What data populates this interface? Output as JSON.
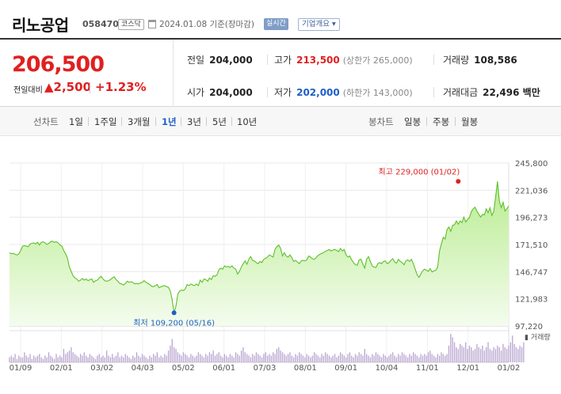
{
  "header": {
    "company_name": "리노공업",
    "code": "058470",
    "market_badge": "코스닥",
    "date_text": "2024.01.08  기준(장마감)",
    "live_badge": "실시간",
    "info_button": "기업개요 ▾"
  },
  "price": {
    "current": "206,500",
    "prev_label": "전일대비",
    "change": "▲2,500",
    "change_pct": "+1.23%"
  },
  "stats": {
    "prev_close_label": "전일",
    "prev_close": "204,000",
    "high_label": "고가",
    "high": "213,500",
    "upper_limit": "(상한가 265,000)",
    "volume_label": "거래량",
    "volume": "108,586",
    "open_label": "시가",
    "open": "204,000",
    "low_label": "저가",
    "low": "202,000",
    "lower_limit": "(하한가 143,000)",
    "amount_label": "거래대금",
    "amount": "22,496 백만"
  },
  "toolbar": {
    "line_label": "선차트",
    "line_periods": [
      "1일",
      "1주일",
      "3개월",
      "1년",
      "3년",
      "5년",
      "10년"
    ],
    "active_line_period": "1년",
    "candle_label": "봉차트",
    "candle_periods": [
      "일봉",
      "주봉",
      "월봉"
    ]
  },
  "chart_data": {
    "type": "area",
    "y_ticks": [
      "245,800",
      "221,036",
      "196,273",
      "171,510",
      "146,747",
      "121,983",
      "97,220"
    ],
    "ylim": [
      97220,
      245800
    ],
    "x_ticks": [
      "01/09",
      "02/01",
      "03/02",
      "04/03",
      "05/02",
      "06/01",
      "07/03",
      "08/01",
      "09/01",
      "10/04",
      "11/01",
      "12/01",
      "01/02"
    ],
    "volume_label": "거래량",
    "max_annotation": "최고 229,000 (01/02)",
    "min_annotation": "최저 109,200 (05/16)",
    "max_value": 229000,
    "min_value": 109200,
    "max_index": 240,
    "min_index": 88,
    "series": [
      {
        "values": [
          164000,
          163000,
          163500,
          162500,
          162000,
          163000,
          166000,
          170000,
          170500,
          170000,
          169500,
          172000,
          172500,
          173000,
          172000,
          173500,
          171000,
          173500,
          174000,
          173000,
          171500,
          172500,
          174000,
          174500,
          173500,
          174000,
          173000,
          171000,
          170000,
          166000,
          163000,
          159000,
          151000,
          147000,
          143000,
          141000,
          140000,
          138000,
          139000,
          140500,
          139000,
          140000,
          138500,
          139500,
          140000,
          137000,
          138500,
          139000,
          141000,
          142500,
          140000,
          138500,
          138000,
          138500,
          139500,
          141000,
          142000,
          139500,
          138000,
          136000,
          135500,
          134500,
          136000,
          138000,
          137000,
          137500,
          137000,
          135500,
          136000,
          135500,
          136500,
          137000,
          138500,
          137000,
          136000,
          135000,
          133500,
          133000,
          134000,
          135000,
          132000,
          133000,
          133500,
          134000,
          133000,
          132500,
          129000,
          121000,
          109200,
          115000,
          126000,
          129000,
          130000,
          129500,
          131000,
          135000,
          134000,
          135500,
          134500,
          134000,
          135500,
          134000,
          139000,
          137000,
          140000,
          139500,
          138000,
          141000,
          139500,
          143000,
          142500,
          144000,
          148500,
          150000,
          149000,
          152000,
          151000,
          151500,
          150500,
          152000,
          150000,
          149000,
          144500,
          147000,
          151000,
          154000,
          156500,
          153500,
          158000,
          160500,
          157000,
          156500,
          155000,
          154000,
          156000,
          155000,
          158000,
          159000,
          160000,
          162000,
          161000,
          160000,
          167000,
          169500,
          171000,
          168000,
          161000,
          164000,
          161000,
          160000,
          162000,
          159500,
          156000,
          157000,
          155500,
          154000,
          156500,
          157000,
          156500,
          157500,
          161000,
          160000,
          158500,
          158000,
          159500,
          161500,
          162500,
          163500,
          164000,
          165500,
          166000,
          167000,
          165500,
          166500,
          167000,
          166000,
          165000,
          168000,
          165500,
          167000,
          162000,
          160000,
          161000,
          157500,
          155000,
          153000,
          152500,
          157500,
          158000,
          153500,
          150000,
          158000,
          160500,
          156000,
          152000,
          151000,
          150500,
          154000,
          155000,
          154000,
          156000,
          156500,
          154000,
          155000,
          157000,
          158500,
          155500,
          154500,
          158000,
          156000,
          155000,
          153000,
          156500,
          157500,
          156000,
          158000,
          154000,
          149000,
          144000,
          141500,
          144500,
          147500,
          149000,
          148000,
          147000,
          149500,
          146500,
          147500,
          148000,
          151000,
          165500,
          172000,
          178000,
          176500,
          185000,
          187500,
          183500,
          189000,
          189500,
          193000,
          190000,
          193000,
          191500,
          196500,
          192000,
          194500,
          196000,
          201500,
          204000,
          205500,
          202000,
          199000,
          196500,
          199000,
          198500,
          204000,
          200500,
          205000,
          198000,
          201500,
          215000,
          229000,
          211000,
          205000,
          210000,
          202000,
          204000,
          206500
        ]
      },
      {
        "name": "거래량",
        "values": [
          3,
          4,
          3,
          5,
          2,
          4,
          3,
          3,
          6,
          4,
          3,
          5,
          2,
          4,
          3,
          4,
          5,
          3,
          2,
          4,
          3,
          6,
          4,
          3,
          2,
          5,
          3,
          4,
          3,
          8,
          5,
          6,
          7,
          9,
          6,
          5,
          4,
          3,
          5,
          4,
          6,
          4,
          3,
          5,
          4,
          3,
          2,
          4,
          5,
          3,
          4,
          3,
          7,
          4,
          3,
          5,
          3,
          4,
          6,
          3,
          4,
          3,
          5,
          4,
          3,
          2,
          4,
          3,
          6,
          4,
          3,
          5,
          4,
          3,
          2,
          4,
          3,
          5,
          4,
          6,
          3,
          4,
          3,
          5,
          4,
          7,
          10,
          14,
          9,
          8,
          6,
          5,
          4,
          6,
          5,
          4,
          3,
          5,
          4,
          3,
          4,
          6,
          5,
          4,
          3,
          5,
          4,
          6,
          5,
          7,
          4,
          5,
          6,
          4,
          3,
          5,
          4,
          3,
          5,
          4,
          3,
          6,
          5,
          4,
          7,
          9,
          6,
          5,
          4,
          3,
          5,
          4,
          6,
          5,
          4,
          3,
          5,
          6,
          4,
          5,
          4,
          6,
          5,
          8,
          9,
          7,
          6,
          5,
          4,
          5,
          6,
          4,
          3,
          5,
          4,
          6,
          5,
          4,
          3,
          5,
          4,
          3,
          4,
          6,
          5,
          4,
          3,
          5,
          4,
          6,
          5,
          4,
          3,
          4,
          5,
          3,
          4,
          6,
          5,
          4,
          3,
          5,
          6,
          4,
          3,
          5,
          4,
          6,
          5,
          4,
          8,
          5,
          4,
          3,
          5,
          4,
          6,
          5,
          4,
          3,
          5,
          4,
          3,
          4,
          5,
          6,
          4,
          3,
          5,
          4,
          6,
          5,
          4,
          3,
          5,
          4,
          6,
          5,
          4,
          3,
          5,
          4,
          5,
          4,
          6,
          7,
          5,
          4,
          3,
          5,
          4,
          6,
          5,
          4,
          5,
          10,
          17,
          15,
          12,
          9,
          8,
          11,
          10,
          9,
          12,
          8,
          10,
          9,
          7,
          8,
          11,
          9,
          8,
          10,
          7,
          9,
          12,
          8,
          7,
          9,
          8,
          10,
          9,
          7,
          11,
          9,
          8,
          10,
          12,
          16,
          11,
          9,
          8,
          10,
          9,
          12
        ]
      }
    ]
  },
  "colors": {
    "up_red": "#e02020",
    "down_blue": "#1f5fc7",
    "line_green": "#5cc02a",
    "area_top": "#b9ec90",
    "area_bottom": "#f4fcee",
    "volume_bar": "#b8a4cf"
  }
}
